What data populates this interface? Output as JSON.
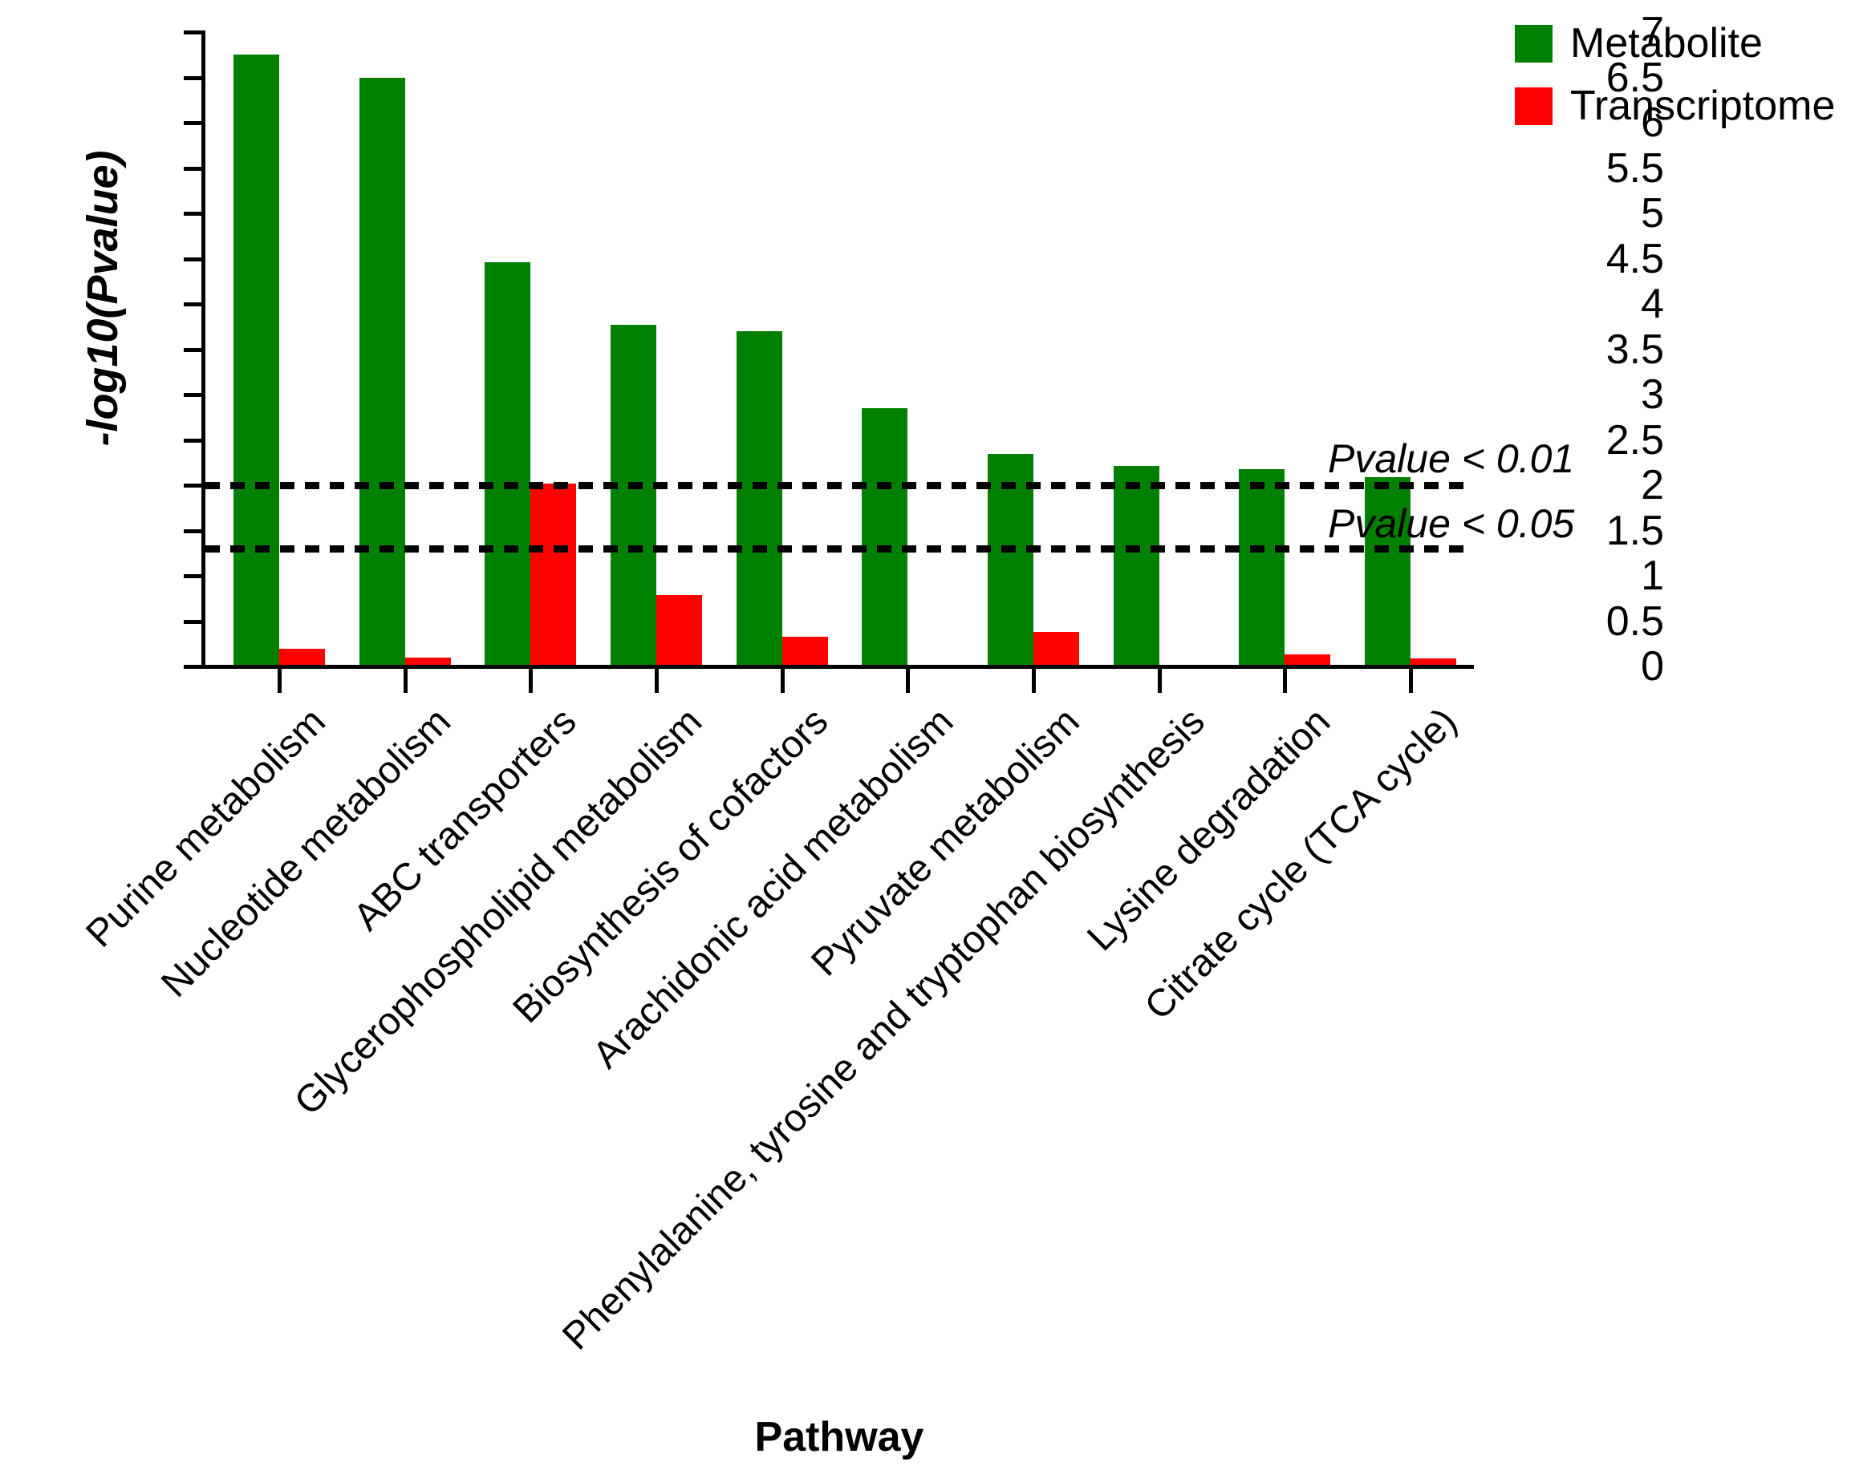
{
  "figure": {
    "background": "#ffffff",
    "text_color": "#000000"
  },
  "chart_data": {
    "type": "bar",
    "title": "",
    "xlabel": "Pathway",
    "ylabel": "-log10(Pvalue)",
    "ylim": [
      0,
      7
    ],
    "ytick_step": 0.5,
    "yticks": [
      "0",
      "0.5",
      "1",
      "1.5",
      "2",
      "2.5",
      "3",
      "3.5",
      "4",
      "4.5",
      "5",
      "5.5",
      "6",
      "6.5",
      "7"
    ],
    "grid": false,
    "legend_position": "top-right",
    "bar_orientation": "vertical",
    "categories": [
      "Purine metabolism",
      "Nucleotide metabolism",
      "ABC transporters",
      "Glycerophospholipid metabolism",
      "Biosynthesis of cofactors",
      "Arachidonic acid metabolism",
      "Pyruvate metabolism",
      "Phenylalanine, tyrosine and tryptophan biosynthesis",
      "Lysine degradation",
      "Citrate cycle (TCA cycle)"
    ],
    "series": [
      {
        "name": "Metabolite",
        "color": "#008000",
        "values": [
          6.74,
          6.49,
          4.45,
          3.76,
          3.69,
          2.84,
          2.34,
          2.2,
          2.17,
          2.08
        ]
      },
      {
        "name": "Transcriptome",
        "color": "#ff0000",
        "values": [
          0.19,
          0.09,
          2.01,
          0.78,
          0.32,
          0,
          0.37,
          0,
          0.12,
          0.08
        ]
      }
    ],
    "reference_lines": [
      {
        "label": "Pvalue < 0.01",
        "value": 2.0,
        "style": "dashed",
        "color": "#000000"
      },
      {
        "label": "Pvalue < 0.05",
        "value": 1.3,
        "style": "dashed",
        "color": "#000000"
      }
    ]
  }
}
